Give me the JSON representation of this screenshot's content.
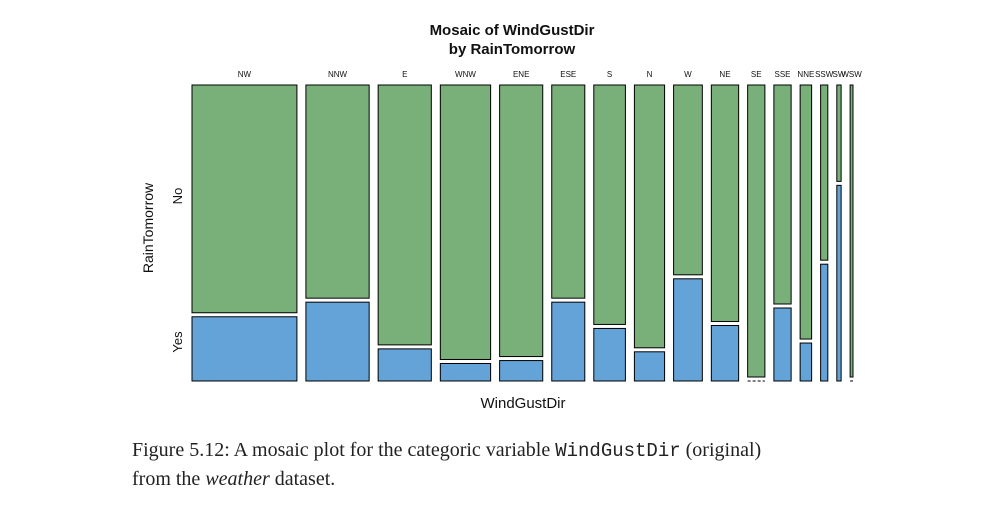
{
  "chart_data": {
    "type": "mosaic",
    "title_line1": "Mosaic of WindGustDir",
    "title_line2": "by RainTomorrow",
    "xlabel": "WindGustDir",
    "ylabel": "RainTomorrow",
    "row_levels": [
      "No",
      "Yes"
    ],
    "categories": [
      "NW",
      "NNW",
      "E",
      "WNW",
      "ENE",
      "ESE",
      "S",
      "N",
      "W",
      "NE",
      "SE",
      "SSE",
      "NNE",
      "SSW",
      "SW",
      "WSW"
    ],
    "category_totals": [
      73,
      44,
      37,
      35,
      30,
      23,
      22,
      21,
      20,
      19,
      12,
      12,
      8,
      5,
      3,
      2
    ],
    "yes_fraction": [
      0.22,
      0.27,
      0.11,
      0.06,
      0.07,
      0.27,
      0.18,
      0.1,
      0.35,
      0.19,
      0.0,
      0.25,
      0.13,
      0.4,
      0.67,
      0.0
    ],
    "colors": {
      "No": "#79b07a",
      "Yes": "#64a3d8"
    }
  },
  "caption": {
    "prefix": "Figure 5.12:  A mosaic plot for the categoric variable ",
    "code": "WindGustDir",
    "middle": " (original)",
    "line2_start": "from the ",
    "dataset": "weather",
    "line2_end": " dataset."
  }
}
